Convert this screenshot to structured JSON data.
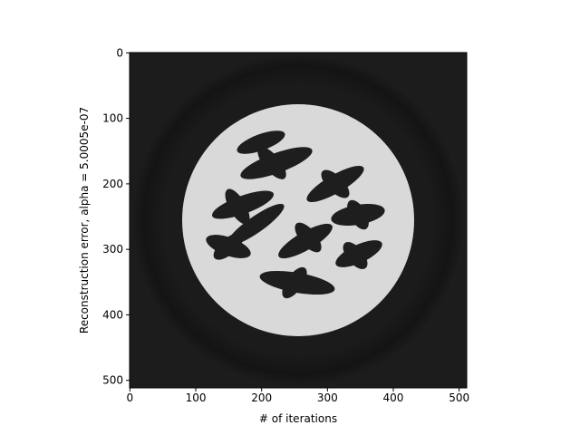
{
  "chart_data": {
    "type": "image",
    "xlabel": "# of iterations",
    "ylabel": "Reconstruction error, alpha = 5.0005e-07",
    "xlim": [
      -0.5,
      511.5
    ],
    "ylim": [
      511.5,
      -0.5
    ],
    "xticks": [
      0,
      100,
      200,
      300,
      400,
      500
    ],
    "yticks": [
      0,
      100,
      200,
      300,
      400,
      500
    ]
  }
}
